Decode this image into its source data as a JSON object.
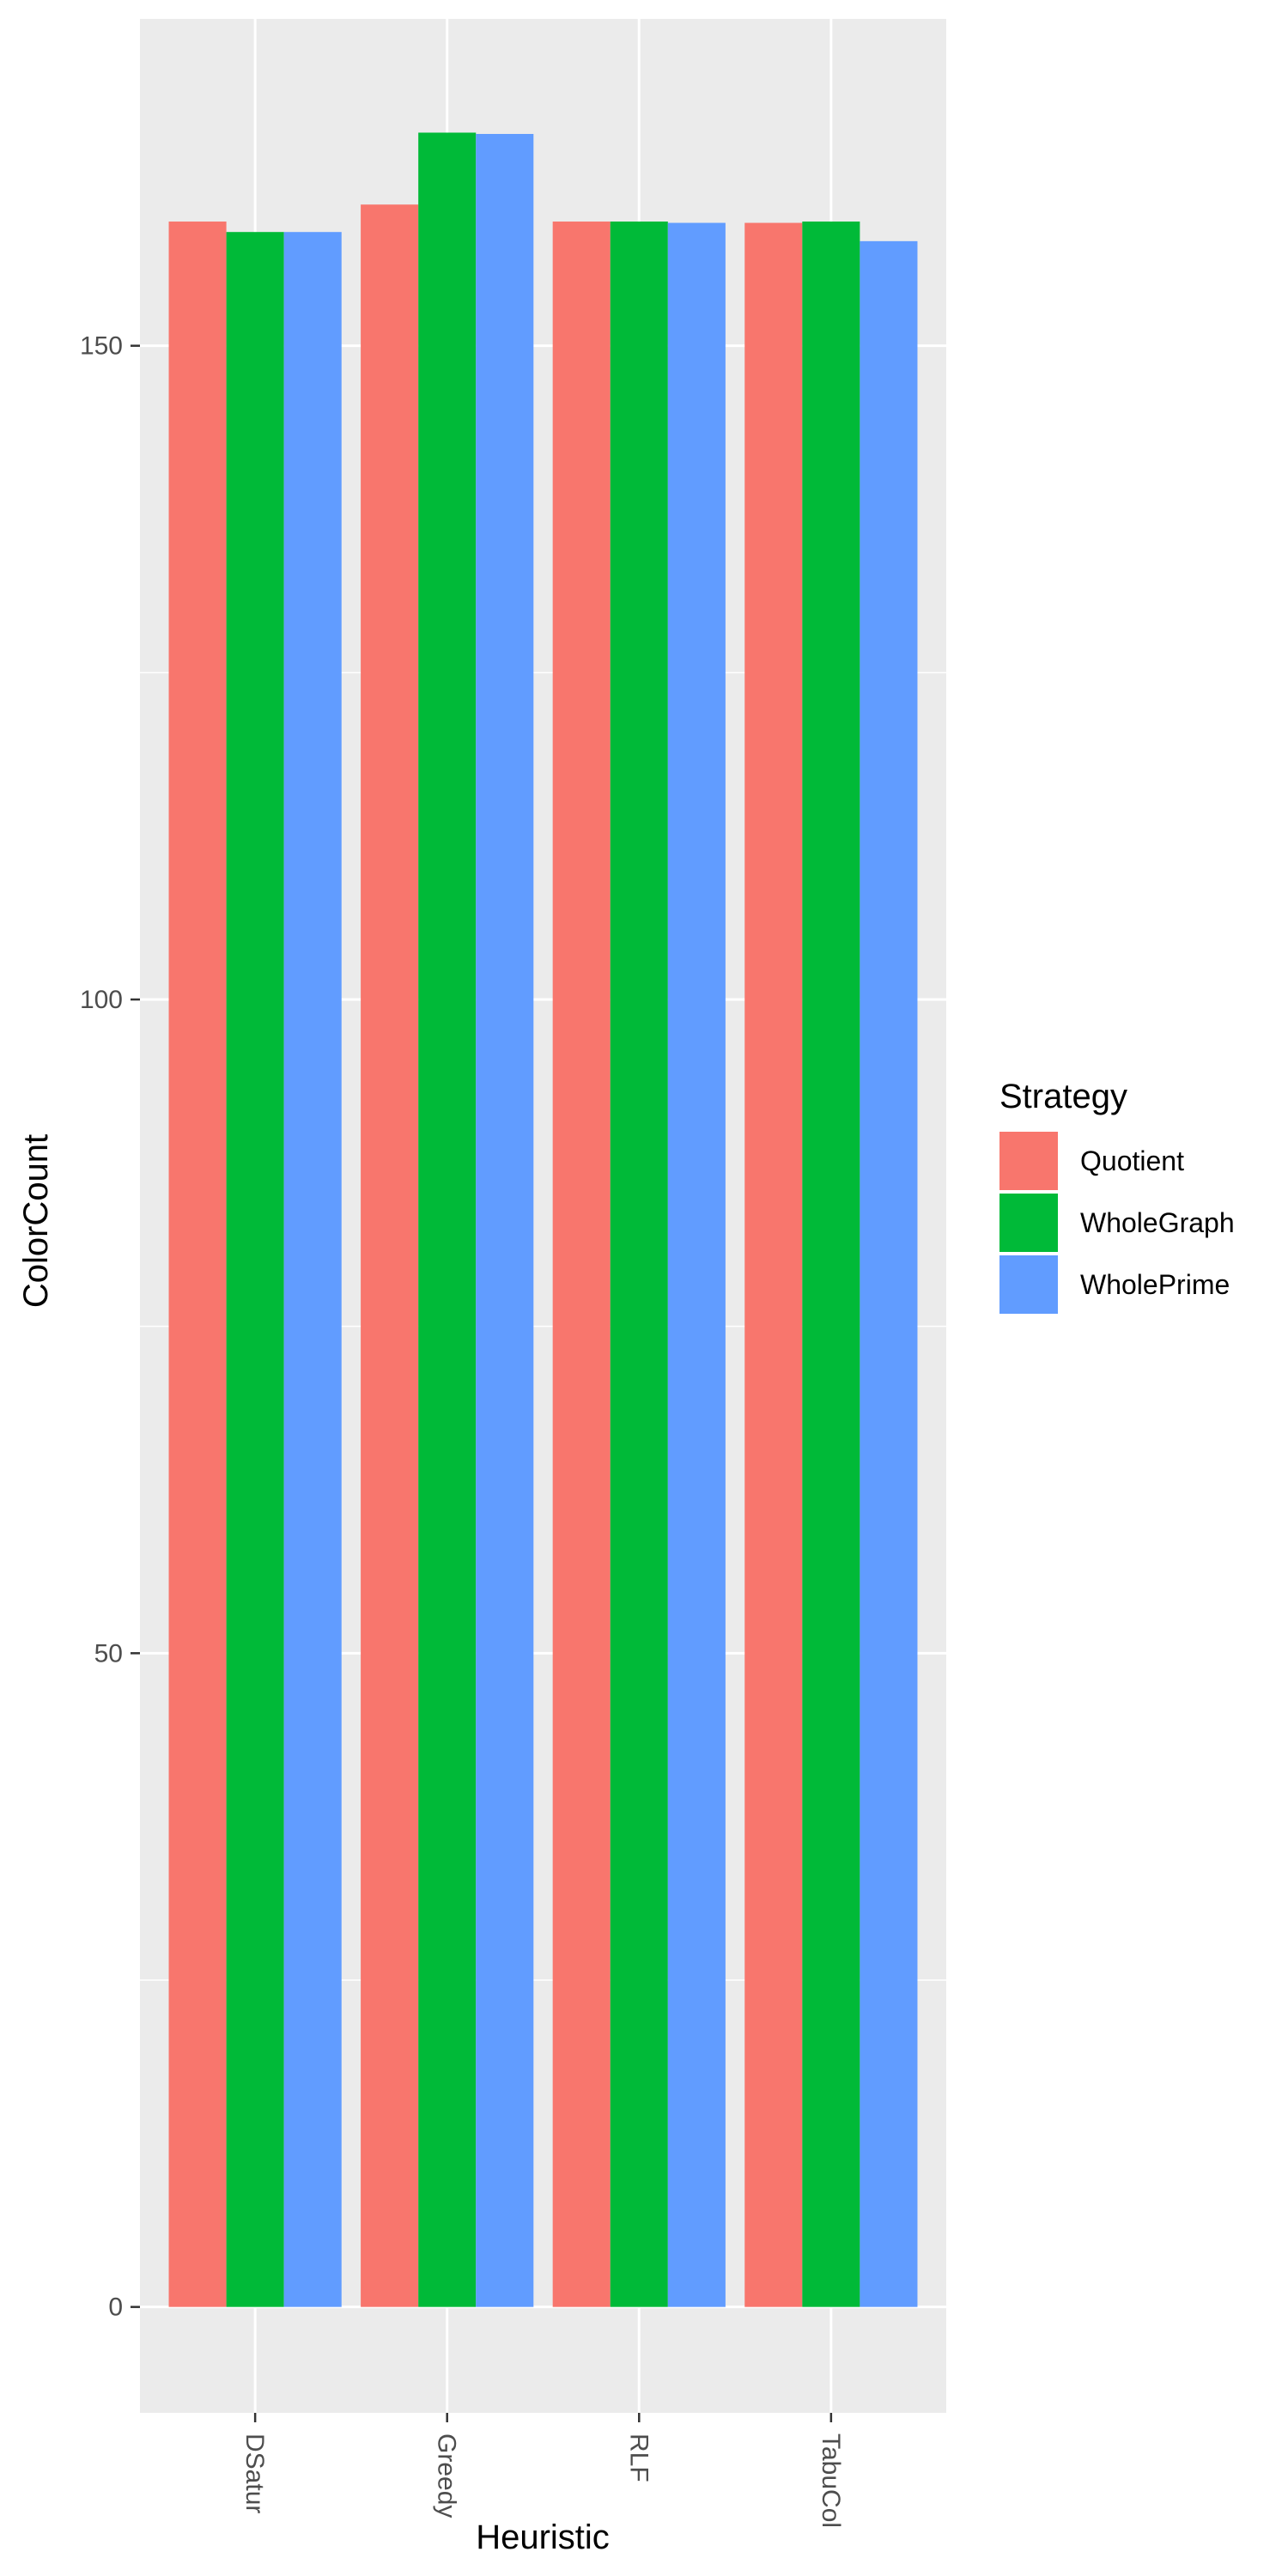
{
  "chart_data": {
    "type": "bar",
    "title": "",
    "xlabel": "Heuristic",
    "ylabel": "ColorCount",
    "categories": [
      "DSatur",
      "Greedy",
      "RLF",
      "TabuCol"
    ],
    "series": [
      {
        "name": "Quotient",
        "color": "#F8766D",
        "values": [
          159.5,
          160.8,
          159.5,
          159.4
        ]
      },
      {
        "name": "WholeGraph",
        "color": "#00BA38",
        "values": [
          158.7,
          166.3,
          159.5,
          159.5
        ]
      },
      {
        "name": "WholePrime",
        "color": "#619CFF",
        "values": [
          158.7,
          166.2,
          159.4,
          158.0
        ]
      }
    ],
    "ylim": [
      -8.1,
      175.0
    ],
    "y_ticks": [
      0,
      50,
      100,
      150
    ],
    "y_tick_labels": [
      "0",
      "50",
      "100",
      "150"
    ],
    "grid": true,
    "panel_background": "#EBEBEB",
    "grid_color": "#FFFFFF",
    "x_tick_label_rotation": "90-clockwise",
    "legend": {
      "title": "Strategy",
      "placement": "right"
    }
  }
}
